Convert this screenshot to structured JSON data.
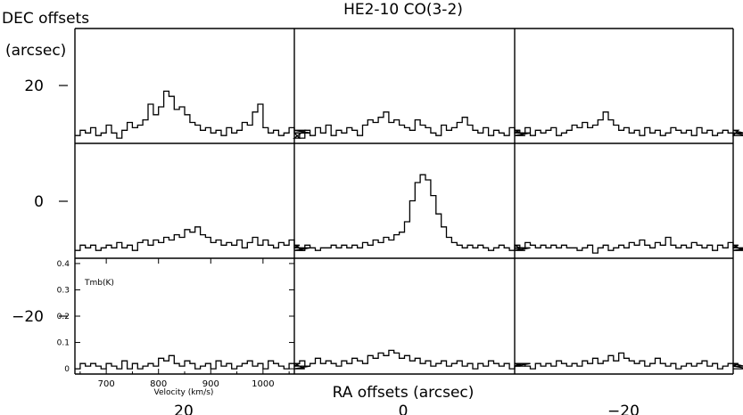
{
  "chart_data": {
    "type": "line",
    "title": "HE2-10 CO(3-2)",
    "xlabel": "RA offsets (arcsec)",
    "ylabel_line1": "DEC offsets",
    "ylabel_line2": "(arcsec)",
    "x_ticks": [
      "20",
      "0",
      "−20"
    ],
    "y_ticks": [
      "20",
      "0",
      "−20"
    ],
    "ra_offsets": [
      20,
      0,
      -20
    ],
    "dec_offsets": [
      20,
      0,
      -20
    ],
    "inset_axes": {
      "xlabel": "Velocity (km/s)",
      "ylabel": "Tmb(K)",
      "x_ticks": [
        "700",
        "800",
        "900",
        "1000"
      ],
      "y_ticks": [
        "0",
        "0.1",
        "0.2",
        "0.3",
        "0.4"
      ],
      "xlim": [
        640,
        1060
      ],
      "ylim": [
        -0.02,
        0.42
      ]
    },
    "velocity_start": 640,
    "velocity_step": 10,
    "spectra": [
      {
        "ra": 20,
        "dec": 20,
        "values": [
          0.01,
          0.03,
          0.02,
          0.04,
          0.01,
          0.02,
          0.05,
          0.02,
          0.0,
          0.03,
          0.06,
          0.04,
          0.05,
          0.07,
          0.13,
          0.09,
          0.12,
          0.18,
          0.16,
          0.11,
          0.12,
          0.09,
          0.06,
          0.05,
          0.03,
          0.04,
          0.02,
          0.03,
          0.01,
          0.04,
          0.02,
          0.03,
          0.06,
          0.05,
          0.1,
          0.13,
          0.04,
          0.02,
          0.03,
          0.01,
          0.02,
          0.04,
          0.02,
          0.0,
          0.03,
          0.02
        ]
      },
      {
        "ra": 0,
        "dec": 20,
        "values": [
          0.02,
          0.0,
          0.03,
          0.01,
          0.04,
          0.02,
          0.05,
          0.01,
          0.03,
          0.02,
          0.04,
          0.03,
          0.01,
          0.05,
          0.07,
          0.06,
          0.08,
          0.1,
          0.06,
          0.07,
          0.05,
          0.04,
          0.03,
          0.07,
          0.05,
          0.04,
          0.02,
          0.01,
          0.05,
          0.03,
          0.04,
          0.06,
          0.08,
          0.05,
          0.03,
          0.02,
          0.04,
          0.01,
          0.03,
          0.02,
          0.01,
          0.04,
          0.02,
          0.03,
          0.01,
          0.02
        ]
      },
      {
        "ra": -20,
        "dec": 20,
        "values": [
          0.03,
          0.02,
          0.04,
          0.01,
          0.03,
          0.02,
          0.03,
          0.04,
          0.01,
          0.02,
          0.03,
          0.05,
          0.04,
          0.06,
          0.04,
          0.05,
          0.07,
          0.1,
          0.07,
          0.05,
          0.03,
          0.04,
          0.02,
          0.03,
          0.01,
          0.04,
          0.02,
          0.03,
          0.01,
          0.02,
          0.04,
          0.03,
          0.02,
          0.03,
          0.01,
          0.04,
          0.02,
          0.03,
          0.01,
          0.02,
          0.03,
          0.02,
          0.01,
          0.03,
          0.02,
          0.01
        ]
      },
      {
        "ra": 20,
        "dec": 0,
        "values": [
          0.01,
          0.03,
          0.02,
          0.03,
          0.01,
          0.02,
          0.03,
          0.02,
          0.04,
          0.02,
          0.03,
          0.01,
          0.04,
          0.05,
          0.03,
          0.05,
          0.04,
          0.06,
          0.05,
          0.07,
          0.06,
          0.09,
          0.08,
          0.1,
          0.07,
          0.06,
          0.04,
          0.05,
          0.03,
          0.04,
          0.03,
          0.05,
          0.02,
          0.04,
          0.06,
          0.03,
          0.05,
          0.03,
          0.02,
          0.04,
          0.03,
          0.05,
          0.02,
          0.03,
          0.01,
          0.02
        ]
      },
      {
        "ra": 0,
        "dec": 0,
        "values": [
          0.02,
          0.01,
          0.03,
          0.02,
          0.01,
          0.02,
          0.02,
          0.03,
          0.02,
          0.03,
          0.02,
          0.03,
          0.02,
          0.04,
          0.03,
          0.05,
          0.04,
          0.06,
          0.05,
          0.07,
          0.08,
          0.12,
          0.2,
          0.27,
          0.3,
          0.28,
          0.22,
          0.15,
          0.1,
          0.06,
          0.04,
          0.03,
          0.02,
          0.03,
          0.02,
          0.03,
          0.02,
          0.01,
          0.02,
          0.03,
          0.02,
          0.01,
          0.03,
          0.02,
          0.01,
          0.02
        ]
      },
      {
        "ra": -20,
        "dec": 0,
        "values": [
          0.03,
          0.02,
          0.04,
          0.03,
          0.02,
          0.03,
          0.02,
          0.03,
          0.02,
          0.03,
          0.02,
          0.02,
          0.01,
          0.02,
          0.03,
          0.0,
          0.02,
          0.03,
          0.01,
          0.02,
          0.03,
          0.02,
          0.04,
          0.03,
          0.05,
          0.03,
          0.02,
          0.04,
          0.03,
          0.06,
          0.03,
          0.02,
          0.03,
          0.02,
          0.04,
          0.03,
          0.02,
          0.03,
          0.01,
          0.03,
          0.02,
          0.04,
          0.02,
          0.03,
          0.01,
          0.02
        ]
      },
      {
        "ra": 20,
        "dec": -20,
        "values": [
          0.0,
          0.02,
          0.01,
          0.02,
          0.01,
          0.0,
          0.02,
          0.01,
          0.0,
          0.03,
          0.0,
          0.02,
          0.0,
          0.01,
          0.02,
          0.01,
          0.04,
          0.03,
          0.05,
          0.02,
          0.01,
          0.03,
          0.02,
          0.0,
          0.01,
          0.02,
          0.0,
          0.03,
          0.01,
          0.02,
          0.0,
          0.01,
          0.02,
          0.03,
          0.01,
          0.02,
          0.0,
          0.03,
          0.02,
          0.01,
          0.0,
          0.02,
          0.01,
          0.02,
          0.0,
          0.01
        ]
      },
      {
        "ra": 0,
        "dec": -20,
        "values": [
          0.02,
          0.03,
          0.01,
          0.02,
          0.04,
          0.02,
          0.03,
          0.02,
          0.01,
          0.03,
          0.02,
          0.04,
          0.03,
          0.02,
          0.05,
          0.04,
          0.06,
          0.05,
          0.07,
          0.06,
          0.04,
          0.05,
          0.03,
          0.04,
          0.02,
          0.03,
          0.01,
          0.02,
          0.03,
          0.01,
          0.02,
          0.03,
          0.01,
          0.02,
          0.0,
          0.02,
          0.01,
          0.03,
          0.02,
          0.01,
          0.02,
          0.0,
          0.01,
          0.02,
          0.01,
          0.02
        ]
      },
      {
        "ra": -20,
        "dec": -20,
        "values": [
          0.01,
          0.02,
          0.01,
          0.0,
          0.02,
          0.01,
          0.02,
          0.01,
          0.03,
          0.02,
          0.01,
          0.02,
          0.01,
          0.03,
          0.02,
          0.04,
          0.02,
          0.03,
          0.05,
          0.03,
          0.06,
          0.04,
          0.03,
          0.02,
          0.03,
          0.01,
          0.02,
          0.04,
          0.02,
          0.01,
          0.02,
          0.0,
          0.01,
          0.02,
          0.01,
          0.02,
          0.03,
          0.01,
          0.02,
          0.0,
          0.01,
          0.02,
          0.01,
          0.02,
          0.01,
          0.0
        ]
      }
    ]
  }
}
